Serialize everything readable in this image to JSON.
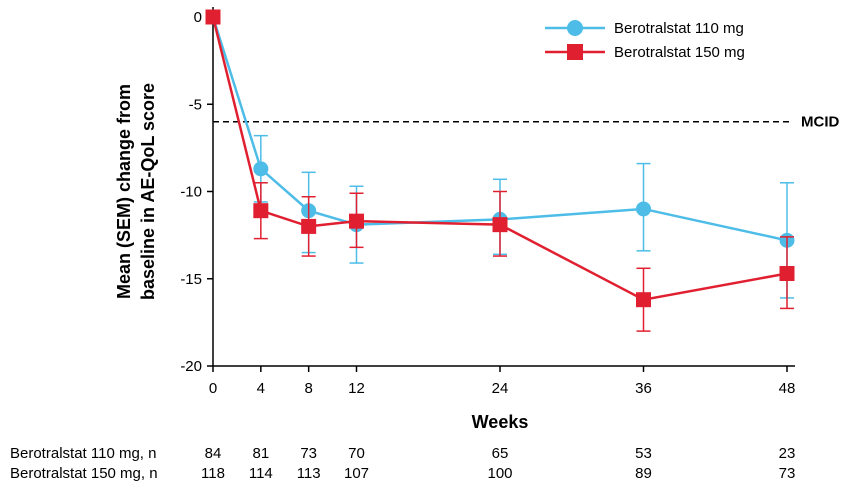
{
  "chart_data": {
    "type": "line",
    "xlabel": "Weeks",
    "ylabel_lines": [
      "Mean (SEM) change from",
      "baseline in AE-QoL score"
    ],
    "x": [
      0,
      4,
      8,
      12,
      24,
      36,
      48
    ],
    "x_ticks": [
      0,
      4,
      8,
      12,
      24,
      36,
      48
    ],
    "y_ticks": [
      0,
      -5,
      -10,
      -15,
      -20
    ],
    "xlim": [
      0,
      48
    ],
    "ylim": [
      -20,
      0
    ],
    "grid": false,
    "legend_position": "top-right",
    "series": [
      {
        "name": "Berotralstat 110 mg",
        "color": "#4DBDE8",
        "marker": "circle",
        "values": [
          0,
          -8.7,
          -11.1,
          -11.9,
          -11.6,
          -11.0,
          -12.8
        ],
        "err_low": [
          0,
          -10.6,
          -13.5,
          -14.1,
          -13.6,
          -13.4,
          -16.1
        ],
        "err_high": [
          0,
          -6.8,
          -8.9,
          -9.7,
          -9.3,
          -8.4,
          -9.5
        ]
      },
      {
        "name": "Berotralstat 150 mg",
        "color": "#E02030",
        "marker": "square",
        "values": [
          0,
          -11.1,
          -12.0,
          -11.7,
          -11.9,
          -16.2,
          -14.7
        ],
        "err_low": [
          0,
          -12.7,
          -13.7,
          -13.2,
          -13.7,
          -18.0,
          -16.7
        ],
        "err_high": [
          0,
          -9.5,
          -10.3,
          -10.1,
          -10.0,
          -14.4,
          -12.6
        ]
      }
    ],
    "reference_line": {
      "label": "MCID",
      "y": -6
    },
    "at_risk_table": {
      "rows": [
        {
          "label": "Berotralstat 110 mg, n",
          "values": [
            84,
            81,
            73,
            70,
            65,
            53,
            23
          ]
        },
        {
          "label": "Berotralstat 150 mg, n",
          "values": [
            118,
            114,
            113,
            107,
            100,
            89,
            73
          ]
        }
      ]
    }
  }
}
